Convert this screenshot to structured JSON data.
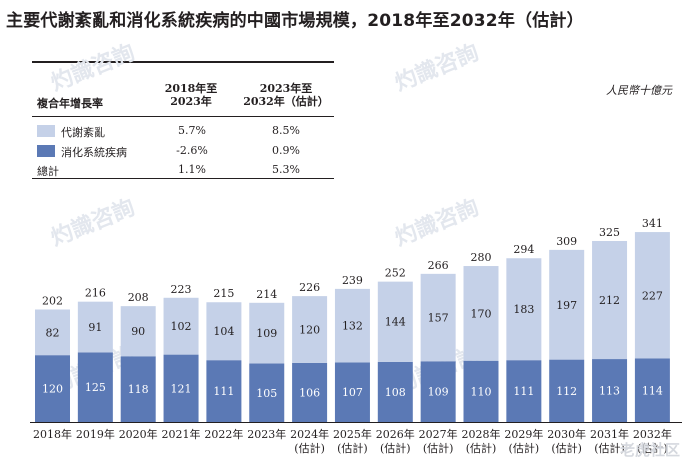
{
  "title": "主要代謝紊亂和消化系統疾病的中國市場規模，2018年至2032年（估計）",
  "unit": "人民幣十億元",
  "table": {
    "cagr_label": "複合年增長率",
    "col1": [
      "2018年至",
      "2023年"
    ],
    "col2": [
      "2023年至",
      "2032年（估計）"
    ],
    "rows": [
      {
        "label": "代謝紊亂",
        "v1": "5.7%",
        "v2": "8.5%"
      },
      {
        "label": "消化系統疾病",
        "v1": "-2.6%",
        "v2": "0.9%"
      },
      {
        "label": "總計",
        "v1": "1.1%",
        "v2": "5.3%"
      }
    ]
  },
  "watermark": "灼識咨詢",
  "watermark_footer": "老虎社区",
  "colors": {
    "light": "#c5d1e8",
    "dark": "#5b79b5"
  },
  "chart_data": {
    "type": "bar",
    "stacked": true,
    "title": "主要代謝紊亂和消化系統疾病的中國市場規模，2018年至2032年（估計）",
    "ylabel": "人民幣十億元",
    "categories": [
      [
        "2018年"
      ],
      [
        "2019年"
      ],
      [
        "2020年"
      ],
      [
        "2021年"
      ],
      [
        "2022年"
      ],
      [
        "2023年"
      ],
      [
        "2024年",
        "(估計)"
      ],
      [
        "2025年",
        "(估計)"
      ],
      [
        "2026年",
        "(估計)"
      ],
      [
        "2027年",
        "(估計)"
      ],
      [
        "2028年",
        "(估計)"
      ],
      [
        "2029年",
        "(估計)"
      ],
      [
        "2030年",
        "(估計)"
      ],
      [
        "2031年",
        "(估計)"
      ],
      [
        "2032年",
        "(估計)"
      ]
    ],
    "series": [
      {
        "name": "消化系統疾病",
        "values": [
          120,
          125,
          118,
          121,
          111,
          105,
          106,
          107,
          108,
          109,
          110,
          111,
          112,
          113,
          114
        ]
      },
      {
        "name": "代謝紊亂",
        "values": [
          82,
          91,
          90,
          102,
          104,
          109,
          120,
          132,
          144,
          157,
          170,
          183,
          197,
          212,
          227
        ]
      }
    ],
    "totals": [
      202,
      216,
      208,
      223,
      215,
      214,
      226,
      239,
      252,
      266,
      280,
      294,
      309,
      325,
      341
    ],
    "ylim": [
      0,
      341
    ]
  }
}
